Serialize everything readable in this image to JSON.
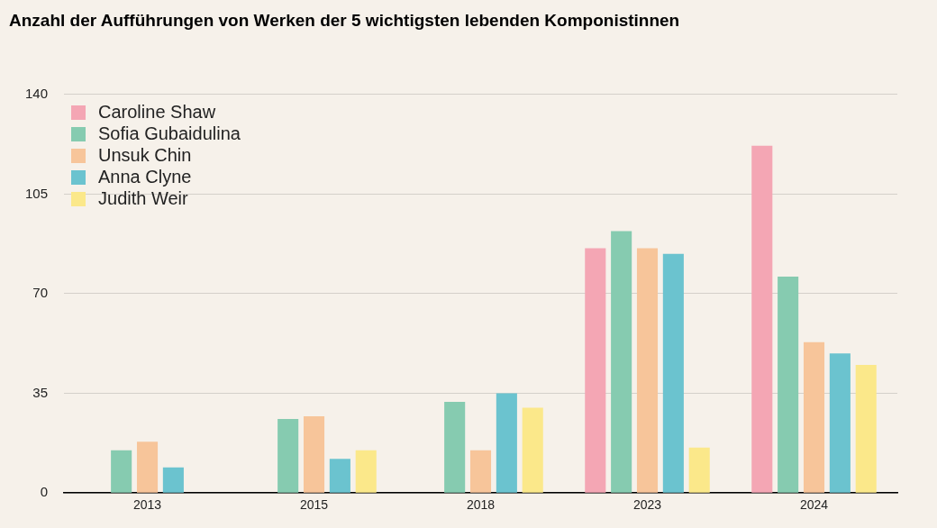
{
  "chart_data": {
    "type": "bar",
    "title": "Anzahl der Aufführungen von Werken der 5 wichtigsten lebenden Komponistinnen",
    "categories": [
      "2013",
      "2015",
      "2018",
      "2023",
      "2024"
    ],
    "series": [
      {
        "name": "Caroline Shaw",
        "color": "#f4a6b4",
        "values": [
          0,
          0,
          0,
          86,
          122
        ]
      },
      {
        "name": "Sofia Gubaidulina",
        "color": "#86cbb0",
        "values": [
          15,
          26,
          32,
          92,
          76
        ]
      },
      {
        "name": "Unsuk Chin",
        "color": "#f7c59a",
        "values": [
          18,
          27,
          15,
          86,
          53
        ]
      },
      {
        "name": "Anna Clyne",
        "color": "#6bc3cf",
        "values": [
          9,
          12,
          35,
          84,
          49
        ]
      },
      {
        "name": "Judith Weir",
        "color": "#fbe88a",
        "values": [
          0,
          15,
          30,
          16,
          45
        ]
      }
    ],
    "ylim": [
      0,
      140
    ],
    "yticks": [
      0,
      35,
      70,
      105,
      140
    ],
    "grid": "y",
    "legend": "top left"
  }
}
